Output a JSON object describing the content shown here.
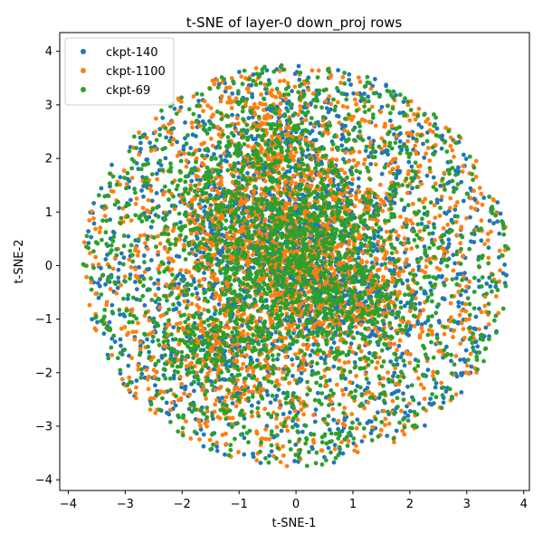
{
  "chart_data": {
    "type": "scatter",
    "title": "t-SNE of layer-0 down_proj rows",
    "xlabel": "t-SNE-1",
    "ylabel": "t-SNE-2",
    "xlim": [
      -4.15,
      4.1
    ],
    "ylim": [
      -4.2,
      4.35
    ],
    "xticks": [
      -4,
      -3,
      -2,
      -1,
      0,
      1,
      2,
      3,
      4
    ],
    "yticks": [
      -4,
      -3,
      -2,
      -1,
      0,
      1,
      2,
      3,
      4
    ],
    "xtick_labels": [
      "−4",
      "−3",
      "−2",
      "−1",
      "0",
      "1",
      "2",
      "3",
      "4"
    ],
    "ytick_labels": [
      "−4",
      "−3",
      "−2",
      "−1",
      "0",
      "1",
      "2",
      "3",
      "4"
    ],
    "grid": false,
    "legend_position": "top-left",
    "cloud": {
      "shape": "roughly circular point cloud",
      "center": [
        0,
        0
      ],
      "radius": 3.75,
      "denser_regions": [
        [
          -1.2,
          0.8
        ],
        [
          -0.3,
          0.6
        ],
        [
          0.5,
          0.8
        ],
        [
          -1.3,
          -1.4
        ],
        [
          1.0,
          -0.6
        ],
        [
          0.1,
          -0.4
        ],
        [
          -0.4,
          2.2
        ]
      ]
    },
    "series": [
      {
        "name": "ckpt-140",
        "color": "#1f77b4",
        "n_points": 2600
      },
      {
        "name": "ckpt-1100",
        "color": "#ff7f0e",
        "n_points": 2600
      },
      {
        "name": "ckpt-69",
        "color": "#2ca02c",
        "n_points": 2600
      }
    ]
  }
}
